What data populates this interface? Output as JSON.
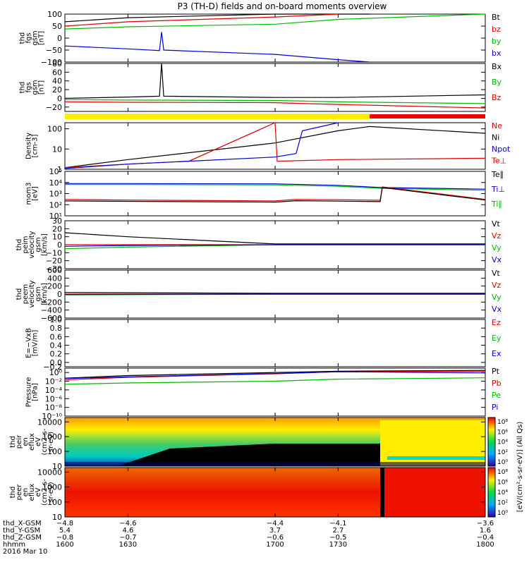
{
  "title": "P3 (TH-D) fields and on-board moments overview",
  "colors": {
    "black": "#000000",
    "red": "#dd0000",
    "green": "#00bb00",
    "blue": "#0000dd",
    "yellow": "#ffee00",
    "bar_red": "#ee0000"
  },
  "chart_data": [
    {
      "type": "line",
      "title": "",
      "ylabel": [
        "thd",
        "fgs",
        "gsm",
        "[nT]"
      ],
      "ylim": [
        -100,
        100
      ],
      "yticks": [
        "100",
        "50",
        "0",
        "−50",
        "−100"
      ],
      "tick_values": [
        100,
        50,
        0,
        -50,
        -100
      ],
      "legend": [
        {
          "label": "Bt",
          "color": "#000000"
        },
        {
          "label": "bz",
          "color": "#dd0000"
        },
        {
          "label": "by",
          "color": "#00bb00"
        },
        {
          "label": "bx",
          "color": "#0000dd"
        }
      ],
      "series": [
        {
          "name": "Bt",
          "color": "#000000",
          "x": [
            1600,
            1630,
            1700,
            1730,
            1745
          ],
          "y": [
            68,
            85,
            100,
            115,
            120
          ]
        },
        {
          "name": "bz",
          "color": "#dd0000",
          "x": [
            1600,
            1630,
            1700,
            1730
          ],
          "y": [
            50,
            68,
            88,
            105
          ]
        },
        {
          "name": "by",
          "color": "#00bb00",
          "x": [
            1600,
            1630,
            1700,
            1730,
            1800
          ],
          "y": [
            38,
            47,
            58,
            78,
            115
          ]
        },
        {
          "name": "bx",
          "color": "#0000dd",
          "x": [
            1600,
            1630,
            1645,
            1646,
            1647,
            1700,
            1730,
            1745
          ],
          "y": [
            -33,
            -45,
            -52,
            25,
            -50,
            -68,
            -90,
            -100
          ]
        }
      ]
    },
    {
      "type": "line",
      "title": "",
      "ylabel": [
        "thd",
        "fgs",
        "gsm",
        "[nT]"
      ],
      "ylim": [
        -30,
        80
      ],
      "yticks": [
        "80",
        "60",
        "40",
        "20",
        "0",
        "−20"
      ],
      "tick_values": [
        80,
        60,
        40,
        20,
        0,
        -20
      ],
      "legend": [
        {
          "label": "Bx",
          "color": "#000000"
        },
        {
          "label": "By",
          "color": "#00bb00"
        },
        {
          "label": "Bz",
          "color": "#dd0000"
        }
      ],
      "series": [
        {
          "name": "Bx",
          "color": "#000000",
          "x": [
            1600,
            1630,
            1645,
            1646,
            1647,
            1700,
            1730,
            1800
          ],
          "y": [
            0,
            3,
            5,
            80,
            5,
            2,
            2,
            8
          ]
        },
        {
          "name": "By",
          "color": "#00bb00",
          "x": [
            1600,
            1630,
            1700,
            1730,
            1800
          ],
          "y": [
            -3,
            -4,
            -5,
            -8,
            -12
          ]
        },
        {
          "name": "Bz",
          "color": "#dd0000",
          "x": [
            1600,
            1630,
            1700,
            1730,
            1800
          ],
          "y": [
            -8,
            -9,
            -10,
            -14,
            -22
          ]
        }
      ]
    },
    {
      "type": "line",
      "title": "",
      "ylabel": [
        "Density",
        "[cm-3]"
      ],
      "ylim": [
        1,
        200
      ],
      "yscale": "log",
      "yticks": [
        "100",
        "10",
        "1"
      ],
      "tick_values": [
        100,
        10,
        1
      ],
      "legend": [
        {
          "label": "Ne",
          "color": "#dd0000"
        },
        {
          "label": "Ni",
          "color": "#000000"
        },
        {
          "label": "Npot",
          "color": "#0000dd"
        },
        {
          "label": "Te⊥",
          "color": "#dd0000"
        }
      ],
      "series": [
        {
          "name": "Ni",
          "color": "#000000",
          "x": [
            1600,
            1630,
            1700,
            1730,
            1745,
            1800
          ],
          "y": [
            1.2,
            3,
            20,
            80,
            130,
            60
          ]
        },
        {
          "name": "Ne",
          "color": "#dd0000",
          "x": [
            1600,
            1630,
            1659,
            1700,
            1701,
            1730,
            1800
          ],
          "y": [
            1.2,
            1.8,
            2.5,
            200,
            2.5,
            3,
            3.5
          ]
        },
        {
          "name": "Npot",
          "color": "#0000dd",
          "x": [
            1600,
            1630,
            1700,
            1710,
            1713,
            1730
          ],
          "y": [
            1.1,
            1.8,
            4,
            6,
            80,
            200
          ]
        }
      ]
    },
    {
      "type": "line",
      "title": "",
      "ylabel": [
        "mom3",
        "[eV]"
      ],
      "ylim": [
        10,
        100000
      ],
      "yscale": "log",
      "yticks": [
        "10⁵",
        "10⁴",
        "10³",
        "10²",
        "10¹"
      ],
      "tick_values": [
        100000,
        10000,
        1000,
        100,
        10
      ],
      "legend": [
        {
          "label": "Te∥",
          "color": "#000000"
        },
        {
          "label": "Ti⊥",
          "color": "#0000dd"
        },
        {
          "label": "Ti∥",
          "color": "#00bb00"
        }
      ],
      "series": [
        {
          "name": "Ti⊥",
          "color": "#0000dd",
          "x": [
            1600,
            1630,
            1700,
            1730,
            1750,
            1800
          ],
          "y": [
            8000,
            8000,
            7500,
            5500,
            3500,
            2500
          ]
        },
        {
          "name": "Ti∥",
          "color": "#00bb00",
          "x": [
            1600,
            1630,
            1700,
            1730,
            1750,
            1800
          ],
          "y": [
            6500,
            6500,
            6000,
            4500,
            3000,
            2000
          ]
        },
        {
          "name": "Te⊥",
          "color": "#dd0000",
          "x": [
            1600,
            1630,
            1700,
            1710,
            1730,
            1750,
            1751,
            1800
          ],
          "y": [
            300,
            260,
            220,
            300,
            280,
            250,
            4000,
            300
          ]
        },
        {
          "name": "Te∥",
          "color": "#000000",
          "x": [
            1600,
            1630,
            1700,
            1710,
            1730,
            1750,
            1751,
            1800
          ],
          "y": [
            220,
            200,
            170,
            230,
            210,
            190,
            3500,
            260
          ]
        }
      ]
    },
    {
      "type": "line",
      "title": "",
      "ylabel": [
        "thd",
        "peim",
        "velocity",
        "gsm",
        "[km/s]"
      ],
      "ylim": [
        -30,
        30
      ],
      "yticks": [
        "30",
        "20",
        "10",
        "0",
        "−10",
        "−20",
        "−30"
      ],
      "tick_values": [
        30,
        20,
        10,
        0,
        -10,
        -20,
        -30
      ],
      "legend": [
        {
          "label": "Vt",
          "color": "#000000"
        },
        {
          "label": "Vz",
          "color": "#dd0000"
        },
        {
          "label": "Vy",
          "color": "#00bb00"
        },
        {
          "label": "Vx",
          "color": "#0000dd"
        }
      ],
      "series": [
        {
          "name": "Vt",
          "color": "#000000",
          "x": [
            1600,
            1630,
            1700,
            1800
          ],
          "y": [
            15,
            10,
            1,
            1
          ]
        },
        {
          "name": "Vz",
          "color": "#dd0000",
          "x": [
            1600,
            1630,
            1700,
            1800
          ],
          "y": [
            0,
            0,
            0,
            0
          ]
        },
        {
          "name": "Vy",
          "color": "#00bb00",
          "x": [
            1600,
            1630,
            1700,
            1800
          ],
          "y": [
            -5,
            -3,
            0,
            0
          ]
        },
        {
          "name": "Vx",
          "color": "#0000dd",
          "x": [
            1600,
            1630,
            1700,
            1800
          ],
          "y": [
            -2,
            -1,
            0,
            0
          ]
        }
      ]
    },
    {
      "type": "line",
      "title": "",
      "ylabel": [
        "thd",
        "peem",
        "velocity",
        "gsm",
        "[km/s]"
      ],
      "ylim": [
        -600,
        600
      ],
      "yticks": [
        "600",
        "400",
        "200",
        "0",
        "−200",
        "−400",
        "−600"
      ],
      "tick_values": [
        600,
        400,
        200,
        0,
        -200,
        -400,
        -600
      ],
      "legend": [
        {
          "label": "Vt",
          "color": "#000000"
        },
        {
          "label": "Vz",
          "color": "#dd0000"
        },
        {
          "label": "Vy",
          "color": "#00bb00"
        },
        {
          "label": "Vx",
          "color": "#0000dd"
        }
      ],
      "series": [
        {
          "name": "Vt",
          "color": "#000000",
          "x": [
            1600,
            1700,
            1800
          ],
          "y": [
            40,
            20,
            20
          ]
        },
        {
          "name": "Vz",
          "color": "#dd0000",
          "x": [
            1600,
            1700,
            1800
          ],
          "y": [
            0,
            0,
            0
          ]
        },
        {
          "name": "Vy",
          "color": "#00bb00",
          "x": [
            1600,
            1700,
            1800
          ],
          "y": [
            -20,
            -5,
            -5
          ]
        },
        {
          "name": "Vx",
          "color": "#0000dd",
          "x": [
            1600,
            1700,
            1800
          ],
          "y": [
            -10,
            0,
            0
          ]
        }
      ]
    },
    {
      "type": "line",
      "title": "",
      "ylabel": [
        "E=−VxB",
        "[mV/m]"
      ],
      "ylim": [
        -0.1,
        1.0
      ],
      "yticks": [
        "1.0",
        "0.8",
        "0.6",
        "0.4",
        "0.2",
        "0.0",
        "−0.2"
      ],
      "tick_values": [
        1.0,
        0.8,
        0.6,
        0.4,
        0.2,
        0.0,
        -0.2
      ],
      "legend": [
        {
          "label": "Ez",
          "color": "#dd0000"
        },
        {
          "label": "Ey",
          "color": "#00bb00"
        },
        {
          "label": "Ex",
          "color": "#0000dd"
        }
      ],
      "series": []
    },
    {
      "type": "line",
      "title": "",
      "ylabel": [
        "Pressure",
        "[nPa]"
      ],
      "ylim": [
        1e-10,
        10
      ],
      "yscale": "log",
      "yticks": [
        "10⁰",
        "10⁻²",
        "10⁻⁴",
        "10⁻⁶",
        "10⁻⁸",
        "10⁻¹⁰"
      ],
      "tick_values": [
        1,
        0.01,
        0.0001,
        1e-06,
        1e-08,
        1e-10
      ],
      "legend": [
        {
          "label": "Pt",
          "color": "#000000"
        },
        {
          "label": "Pb",
          "color": "#dd0000"
        },
        {
          "label": "Pe",
          "color": "#00bb00"
        },
        {
          "label": "Pi",
          "color": "#0000dd"
        }
      ],
      "series": [
        {
          "name": "Pt",
          "color": "#000000",
          "x": [
            1600,
            1630,
            1700,
            1730,
            1800
          ],
          "y": [
            0.05,
            0.2,
            1,
            2,
            3
          ]
        },
        {
          "name": "Pb",
          "color": "#dd0000",
          "x": [
            1600,
            1630,
            1700,
            1730,
            1800
          ],
          "y": [
            0.02,
            0.08,
            0.5,
            1.5,
            2
          ]
        },
        {
          "name": "Pe",
          "color": "#00bb00",
          "x": [
            1600,
            1630,
            1700,
            1730,
            1800
          ],
          "y": [
            0.002,
            0.004,
            0.01,
            0.03,
            0.06
          ]
        },
        {
          "name": "Pi",
          "color": "#0000dd",
          "x": [
            1600,
            1630,
            1700,
            1730,
            1800
          ],
          "y": [
            0.04,
            0.1,
            0.6,
            1.5,
            0.8
          ]
        }
      ]
    },
    {
      "type": "heatmap",
      "title": "",
      "ylabel": [
        "thd",
        "peir",
        "en",
        "eflux",
        "eV",
        "(cm2-s-",
        "sr-eV)"
      ],
      "ylim": [
        10,
        20000
      ],
      "yscale": "log",
      "yticks": [
        "10000",
        "1000",
        "100",
        "10"
      ],
      "tick_values": [
        10000,
        1000,
        100,
        10
      ],
      "colorbar": {
        "labels": [
          "10⁸",
          "10⁶",
          "10⁴",
          "10²",
          "10⁰"
        ]
      }
    },
    {
      "type": "heatmap",
      "title": "",
      "ylabel": [
        "thd",
        "peer",
        "en",
        "eflux",
        "eV",
        "(cm2-s-",
        "sr-eV)"
      ],
      "ylim": [
        10,
        20000
      ],
      "yscale": "log",
      "yticks": [
        "10000",
        "1000",
        "100",
        "10"
      ],
      "tick_values": [
        10000,
        1000,
        100,
        10
      ],
      "colorbar": {
        "labels": [
          "10⁸",
          "10⁶",
          "10⁴",
          "10²",
          "10⁰"
        ]
      }
    }
  ],
  "colorbar_unit": "[eV/(cm²-s-sr-eV)] (All Qs)",
  "x_axis": {
    "rows": [
      {
        "label": "thd_X-GSM",
        "values": [
          "−4.8",
          "−4.6",
          "−4.4",
          "−4.1",
          "−3.6"
        ]
      },
      {
        "label": "thd_Y-GSM",
        "values": [
          "5.4",
          "4.6",
          "3.7",
          "2.7",
          "1.6"
        ]
      },
      {
        "label": "thd_Z-GSM",
        "values": [
          "−0.8",
          "−0.7",
          "−0.6",
          "−0.5",
          "−0.4"
        ]
      },
      {
        "label": "hhmm",
        "values": [
          "1600",
          "1630",
          "1700",
          "1730",
          "1800"
        ]
      }
    ],
    "date": "2016 Mar 10",
    "time_ticks": [
      1600,
      1630,
      1700,
      1730,
      1800
    ]
  }
}
